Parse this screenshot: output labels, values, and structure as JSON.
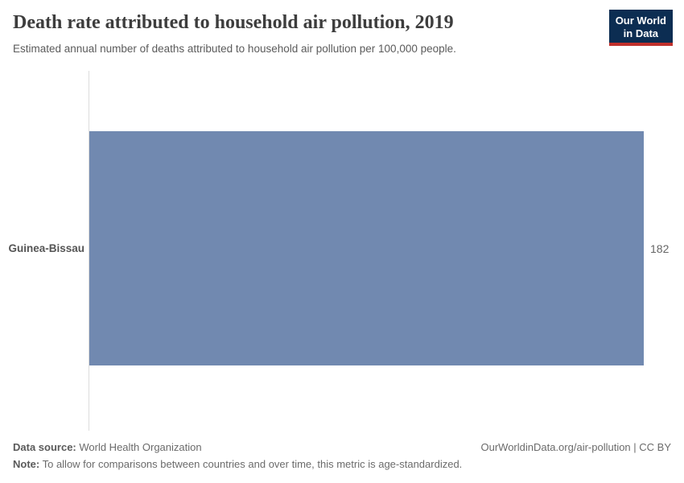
{
  "header": {
    "title": "Death rate attributed to household air pollution, 2019",
    "subtitle": "Estimated annual number of deaths attributed to household air pollution per 100,000 people.",
    "logo": {
      "line1": "Our World",
      "line2": "in Data",
      "bg_color": "#0c2d52",
      "stripe_color": "#c0302c"
    }
  },
  "chart_data": {
    "type": "bar",
    "orientation": "horizontal",
    "title": "Death rate attributed to household air pollution, 2019",
    "subtitle": "Estimated annual number of deaths attributed to household air pollution per 100,000 people.",
    "categories": [
      "Guinea-Bissau"
    ],
    "values": [
      182
    ],
    "xlabel": "",
    "ylabel": "",
    "xlim": [
      0,
      182
    ],
    "grid": false,
    "legend": false,
    "bar_color": "#7189b0",
    "axis_color": "#dcdcdc",
    "value_label_color": "#666666"
  },
  "footer": {
    "data_source_label": "Data source:",
    "data_source_value": " World Health Organization",
    "citation": "OurWorldinData.org/air-pollution | CC BY",
    "note_label": "Note:",
    "note_value": " To allow for comparisons between countries and over time, this metric is age-standardized."
  }
}
